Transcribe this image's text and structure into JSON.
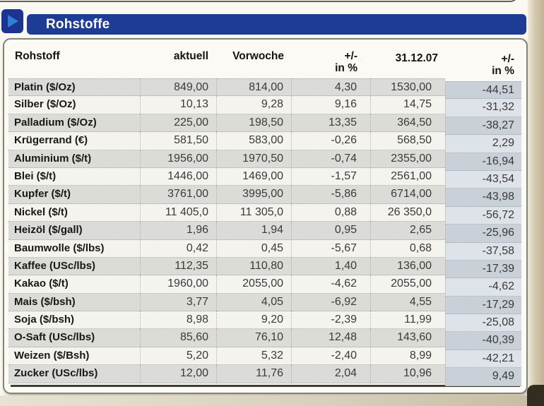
{
  "header": {
    "title": "Rohstoffe"
  },
  "colors": {
    "banner_blue": "#1e3b96",
    "play_icon_blue": "#2e80d4",
    "row_shade_gray": "#dbdbd7",
    "percent_col_shade": "#c9d0d8"
  },
  "table": {
    "columns": [
      {
        "label": "Rohstoff"
      },
      {
        "label": "aktuell"
      },
      {
        "label": "Vorwoche"
      },
      {
        "line1": "+/-",
        "line2": "in %"
      },
      {
        "label": "31.12.07"
      },
      {
        "line1": "+/-",
        "line2": "in %"
      }
    ],
    "rows": [
      {
        "name": "Platin ($/Oz)",
        "values": [
          "849,00",
          "814,00",
          "4,30",
          "1530,00",
          "-44,51"
        ]
      },
      {
        "name": "Silber ($/Oz)",
        "values": [
          "10,13",
          "9,28",
          "9,16",
          "14,75",
          "-31,32"
        ]
      },
      {
        "name": "Palladium ($/Oz)",
        "values": [
          "225,00",
          "198,50",
          "13,35",
          "364,50",
          "-38,27"
        ]
      },
      {
        "name": "Krügerrand (€)",
        "values": [
          "581,50",
          "583,00",
          "-0,26",
          "568,50",
          "2,29"
        ]
      },
      {
        "name": "Aluminium ($/t)",
        "values": [
          "1956,00",
          "1970,50",
          "-0,74",
          "2355,00",
          "-16,94"
        ]
      },
      {
        "name": "Blei ($/t)",
        "values": [
          "1446,00",
          "1469,00",
          "-1,57",
          "2561,00",
          "-43,54"
        ]
      },
      {
        "name": "Kupfer ($/t)",
        "values": [
          "3761,00",
          "3995,00",
          "-5,86",
          "6714,00",
          "-43,98"
        ]
      },
      {
        "name": "Nickel ($/t)",
        "values": [
          "11 405,0",
          "11 305,0",
          "0,88",
          "26 350,0",
          "-56,72"
        ]
      },
      {
        "name": "Heizöl ($/gall)",
        "values": [
          "1,96",
          "1,94",
          "0,95",
          "2,65",
          "-25,96"
        ]
      },
      {
        "name": "Baumwolle ($/lbs)",
        "values": [
          "0,42",
          "0,45",
          "-5,67",
          "0,68",
          "-37,58"
        ]
      },
      {
        "name": "Kaffee (USc/lbs)",
        "values": [
          "112,35",
          "110,80",
          "1,40",
          "136,00",
          "-17,39"
        ]
      },
      {
        "name": "Kakao ($/t)",
        "values": [
          "1960,00",
          "2055,00",
          "-4,62",
          "2055,00",
          "-4,62"
        ]
      },
      {
        "name": "Mais ($/bsh)",
        "values": [
          "3,77",
          "4,05",
          "-6,92",
          "4,55",
          "-17,29"
        ]
      },
      {
        "name": "Soja ($/bsh)",
        "values": [
          "8,98",
          "9,20",
          "-2,39",
          "11,99",
          "-25,08"
        ]
      },
      {
        "name": "O-Saft (USc/lbs)",
        "values": [
          "85,60",
          "76,10",
          "12,48",
          "143,60",
          "-40,39"
        ]
      },
      {
        "name": "Weizen ($/Bsh)",
        "values": [
          "5,20",
          "5,32",
          "-2,40",
          "8,99",
          "-42,21"
        ]
      },
      {
        "name": "Zucker (USc/lbs)",
        "values": [
          "12,00",
          "11,76",
          "2,04",
          "10,96",
          "9,49"
        ]
      }
    ]
  }
}
